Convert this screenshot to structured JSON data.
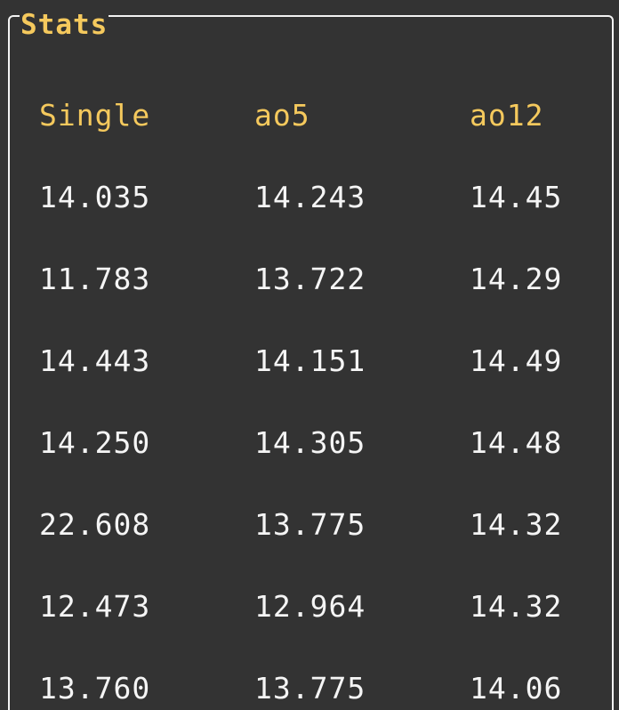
{
  "panel": {
    "title": "Stats",
    "accent_color": "#f5c95d",
    "background_color": "#333333",
    "border_color": "#f2f2f2"
  },
  "table": {
    "columns": [
      "Single",
      "ao5",
      "ao12"
    ],
    "rows": [
      [
        "14.035",
        "14.243",
        "14.45"
      ],
      [
        "11.783",
        "13.722",
        "14.29"
      ],
      [
        "14.443",
        "14.151",
        "14.49"
      ],
      [
        "14.250",
        "14.305",
        "14.48"
      ],
      [
        "22.608",
        "13.775",
        "14.32"
      ],
      [
        "12.473",
        "12.964",
        "14.32"
      ],
      [
        "13.760",
        "13.775",
        "14.06"
      ]
    ]
  }
}
